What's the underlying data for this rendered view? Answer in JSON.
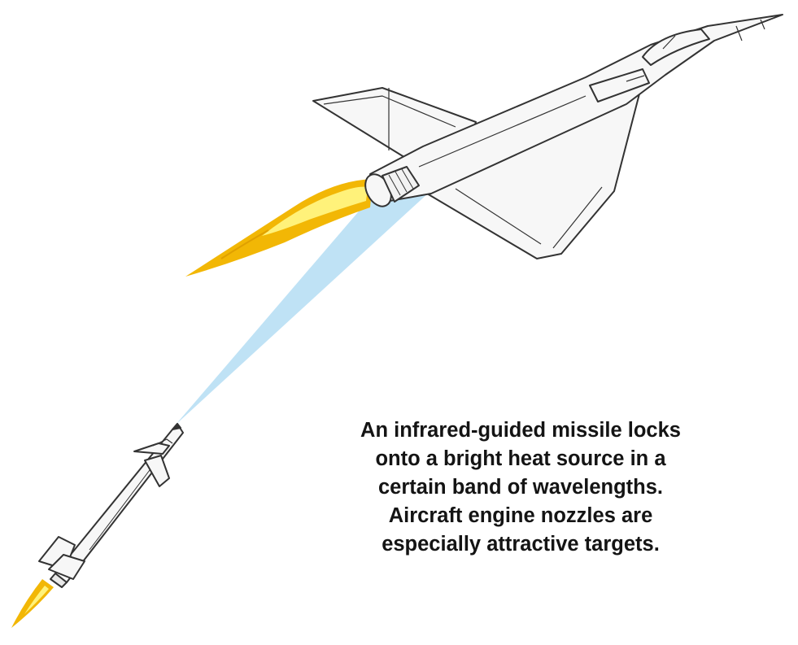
{
  "caption": {
    "lines": [
      "An infrared-guided missile locks",
      "onto a bright heat source in a",
      "certain band of wavelengths.",
      "Aircraft engine nozzles are",
      "especially attractive targets."
    ]
  },
  "colors": {
    "background": "#ffffff",
    "ir_beam": "#bfe2f5",
    "exhaust_outer": "#f2b705",
    "exhaust_inner": "#fff27a",
    "airframe_fill": "#f7f7f7",
    "airframe_stroke": "#333333",
    "caption_text": "#141414"
  },
  "icons": {
    "aircraft": "delta-wing-jet-icon",
    "missile": "air-to-air-missile-icon",
    "beam": "infrared-seeker-cone",
    "plume": "engine-exhaust-flame"
  }
}
